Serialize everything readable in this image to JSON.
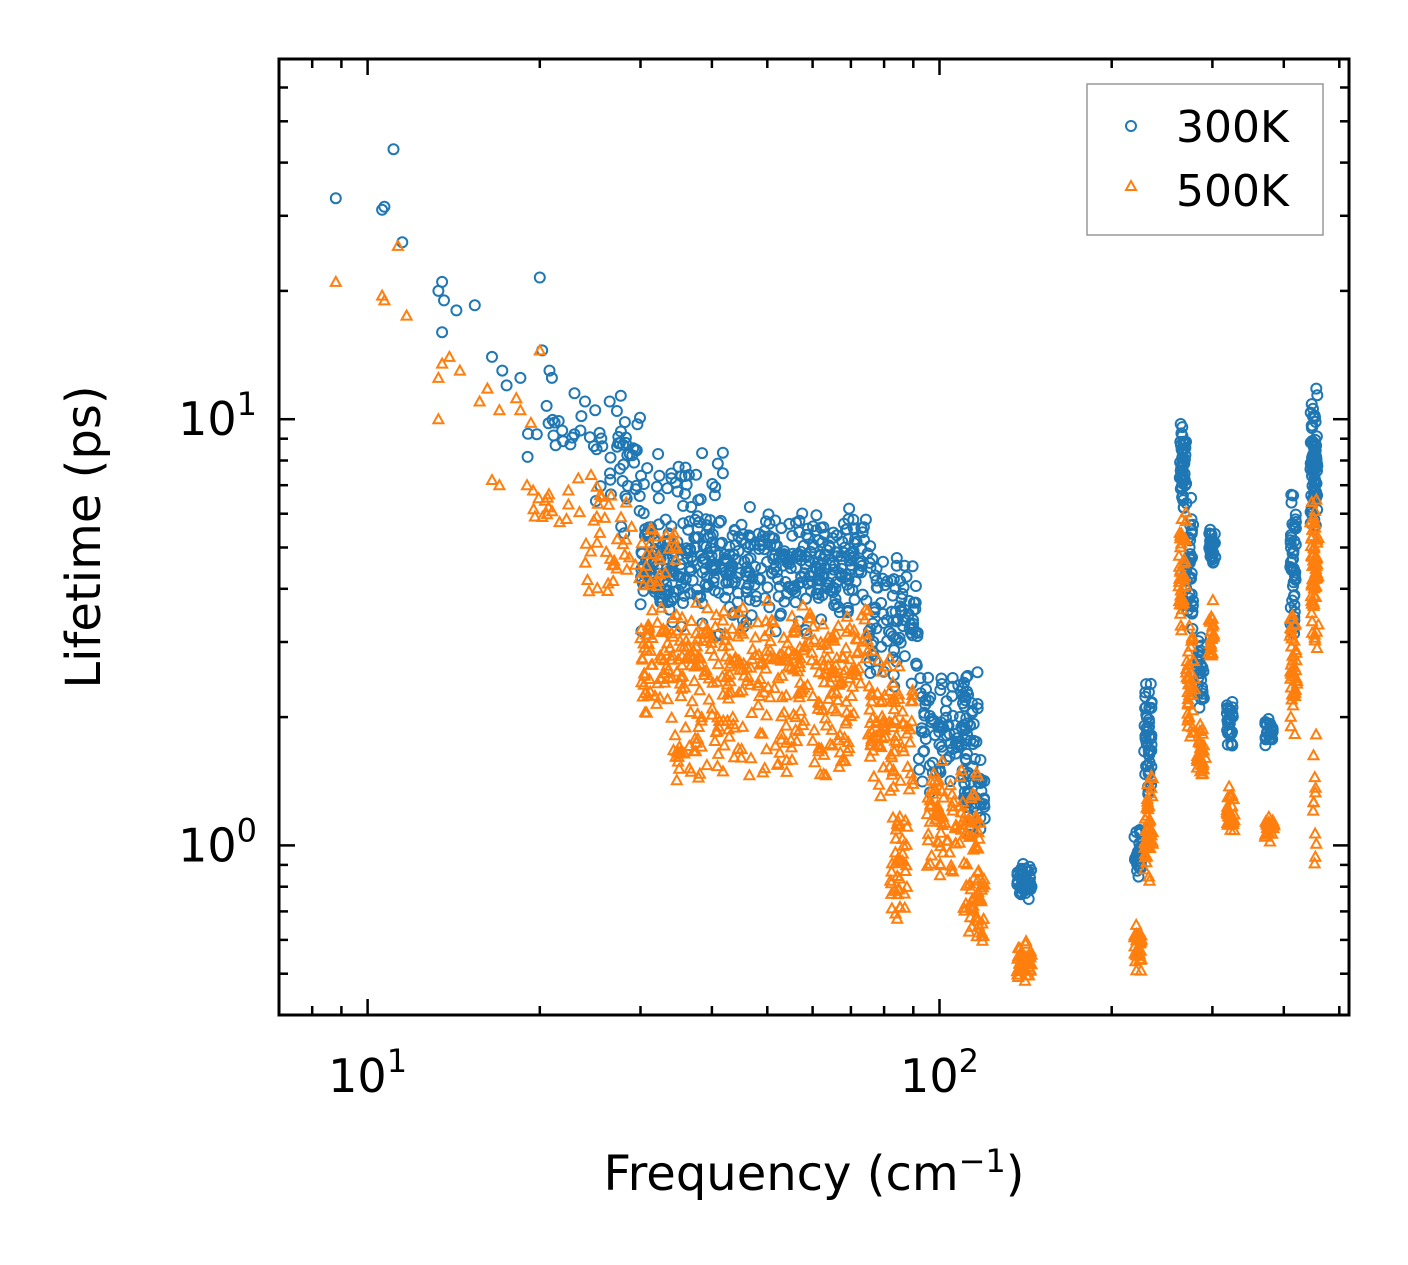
{
  "chart_data": {
    "type": "scatter",
    "title": "",
    "xlabel": "Frequency (cm",
    "xlabel_sup": "−1",
    "xlabel_tail": ")",
    "ylabel": "Lifetime (ps)",
    "xscale": "log",
    "yscale": "log",
    "xlim": [
      7,
      520
    ],
    "ylim": [
      0.4,
      70
    ],
    "x_ticks": [
      {
        "value": 10,
        "base": "10",
        "exp": "1"
      },
      {
        "value": 100,
        "base": "10",
        "exp": "2"
      }
    ],
    "y_ticks": [
      {
        "value": 1,
        "base": "10",
        "exp": "0"
      },
      {
        "value": 10,
        "base": "10",
        "exp": "1"
      }
    ],
    "legend": {
      "position": "top-right"
    },
    "series": [
      {
        "name": "300K",
        "marker": "circle",
        "color": "#1f77b4",
        "points": [
          [
            8.8,
            33.0
          ],
          [
            10.6,
            31.0
          ],
          [
            10.7,
            31.5
          ],
          [
            11.1,
            43.0
          ],
          [
            11.5,
            26.0
          ],
          [
            13.3,
            20.0
          ],
          [
            13.5,
            21.0
          ],
          [
            13.6,
            19.0
          ],
          [
            14.3,
            18.0
          ],
          [
            15.4,
            18.5
          ],
          [
            13.5,
            16.0
          ],
          [
            16.5,
            14.0
          ],
          [
            17.2,
            13.0
          ],
          [
            17.5,
            12.0
          ],
          [
            18.5,
            12.5
          ],
          [
            20.0,
            21.5
          ],
          [
            20.2,
            14.5
          ],
          [
            20.8,
            13.0
          ],
          [
            21.0,
            12.5
          ],
          [
            23.0,
            11.5
          ],
          [
            24.0,
            11.0
          ],
          [
            25.0,
            10.5
          ],
          [
            26.5,
            11.0
          ]
        ],
        "bands": [
          {
            "x": [
              19,
              30
            ],
            "y": [
              7.0,
              12.0
            ],
            "count": 40
          },
          {
            "x": [
              25,
              42
            ],
            "y": [
              5.0,
              9.5
            ],
            "count": 60
          },
          {
            "x": [
              30,
              75
            ],
            "y": [
              3.6,
              6.3
            ],
            "count": 320
          },
          {
            "x": [
              30,
              78
            ],
            "y": [
              3.0,
              5.5
            ],
            "count": 140
          },
          {
            "x": [
              75,
              92
            ],
            "y": [
              2.3,
              5.0
            ],
            "count": 90
          },
          {
            "x": [
              92,
              118
            ],
            "y": [
              1.3,
              2.7
            ],
            "count": 120
          },
          {
            "x": [
              110,
              120
            ],
            "y": [
              1.0,
              1.6
            ],
            "count": 40
          },
          {
            "x": [
              136,
              145
            ],
            "y": [
              0.73,
              0.92
            ],
            "count": 45
          },
          {
            "x": [
              219,
              226
            ],
            "y": [
              0.82,
              1.1
            ],
            "count": 30
          },
          {
            "x": [
              228,
              235
            ],
            "y": [
              1.2,
              2.5
            ],
            "count": 50
          },
          {
            "x": [
              263,
              270
            ],
            "y": [
              6.0,
              10.5
            ],
            "count": 50
          },
          {
            "x": [
              270,
              278
            ],
            "y": [
              3.0,
              7.0
            ],
            "count": 40
          },
          {
            "x": [
              282,
              290
            ],
            "y": [
              2.0,
              3.2
            ],
            "count": 30
          },
          {
            "x": [
              296,
              304
            ],
            "y": [
              4.5,
              5.6
            ],
            "count": 30
          },
          {
            "x": [
              318,
              326
            ],
            "y": [
              1.6,
              2.3
            ],
            "count": 30
          },
          {
            "x": [
              370,
              383
            ],
            "y": [
              1.7,
              2.0
            ],
            "count": 25
          },
          {
            "x": [
              410,
              420
            ],
            "y": [
              3.0,
              7.0
            ],
            "count": 50
          },
          {
            "x": [
              445,
              458
            ],
            "y": [
              5.0,
              12.5
            ],
            "count": 80
          }
        ]
      },
      {
        "name": "500K",
        "marker": "triangle",
        "color": "#ff7f0e",
        "points": [
          [
            8.8,
            21.0
          ],
          [
            10.6,
            19.5
          ],
          [
            10.7,
            19.0
          ],
          [
            11.3,
            25.5
          ],
          [
            11.7,
            17.5
          ],
          [
            13.3,
            12.5
          ],
          [
            13.5,
            13.5
          ],
          [
            13.9,
            14.0
          ],
          [
            14.5,
            13.0
          ],
          [
            13.3,
            10.0
          ],
          [
            15.7,
            11.0
          ],
          [
            16.2,
            11.8
          ],
          [
            17.0,
            10.5
          ],
          [
            18.2,
            11.2
          ],
          [
            18.5,
            10.5
          ],
          [
            19.3,
            9.8
          ],
          [
            20.0,
            14.5
          ],
          [
            16.5,
            7.2
          ],
          [
            17.0,
            7.0
          ],
          [
            19.0,
            7.0
          ]
        ],
        "bands": [
          {
            "x": [
              19,
              29
            ],
            "y": [
              5.5,
              7.5
            ],
            "count": 30
          },
          {
            "x": [
              24,
              35
            ],
            "y": [
              3.8,
              5.8
            ],
            "count": 50
          },
          {
            "x": [
              30,
              75
            ],
            "y": [
              1.9,
              3.9
            ],
            "count": 340
          },
          {
            "x": [
              34,
              70
            ],
            "y": [
              1.35,
              2.2
            ],
            "count": 110
          },
          {
            "x": [
              75,
              90
            ],
            "y": [
              1.2,
              3.0
            ],
            "count": 90
          },
          {
            "x": [
              82,
              88
            ],
            "y": [
              0.65,
              1.2
            ],
            "count": 40
          },
          {
            "x": [
              95,
              118
            ],
            "y": [
              0.8,
              1.6
            ],
            "count": 100
          },
          {
            "x": [
              110,
              120
            ],
            "y": [
              0.58,
              0.9
            ],
            "count": 40
          },
          {
            "x": [
              136,
              145
            ],
            "y": [
              0.48,
              0.6
            ],
            "count": 45
          },
          {
            "x": [
              219,
              226
            ],
            "y": [
              0.48,
              0.67
            ],
            "count": 30
          },
          {
            "x": [
              228,
              236
            ],
            "y": [
              0.8,
              1.6
            ],
            "count": 50
          },
          {
            "x": [
              262,
              270
            ],
            "y": [
              3.0,
              6.5
            ],
            "count": 40
          },
          {
            "x": [
              270,
              280
            ],
            "y": [
              1.6,
              3.5
            ],
            "count": 40
          },
          {
            "x": [
              282,
              292
            ],
            "y": [
              1.4,
              2.0
            ],
            "count": 25
          },
          {
            "x": [
              295,
              302
            ],
            "y": [
              2.5,
              3.8
            ],
            "count": 25
          },
          {
            "x": [
              318,
              328
            ],
            "y": [
              1.0,
              1.4
            ],
            "count": 30
          },
          {
            "x": [
              370,
              385
            ],
            "y": [
              1.0,
              1.2
            ],
            "count": 25
          },
          {
            "x": [
              410,
              422
            ],
            "y": [
              1.8,
              4.0
            ],
            "count": 40
          },
          {
            "x": [
              445,
              460
            ],
            "y": [
              2.5,
              7.0
            ],
            "count": 70
          },
          {
            "x": [
              450,
              456
            ],
            "y": [
              0.78,
              2.0
            ],
            "count": 12
          }
        ]
      }
    ]
  }
}
